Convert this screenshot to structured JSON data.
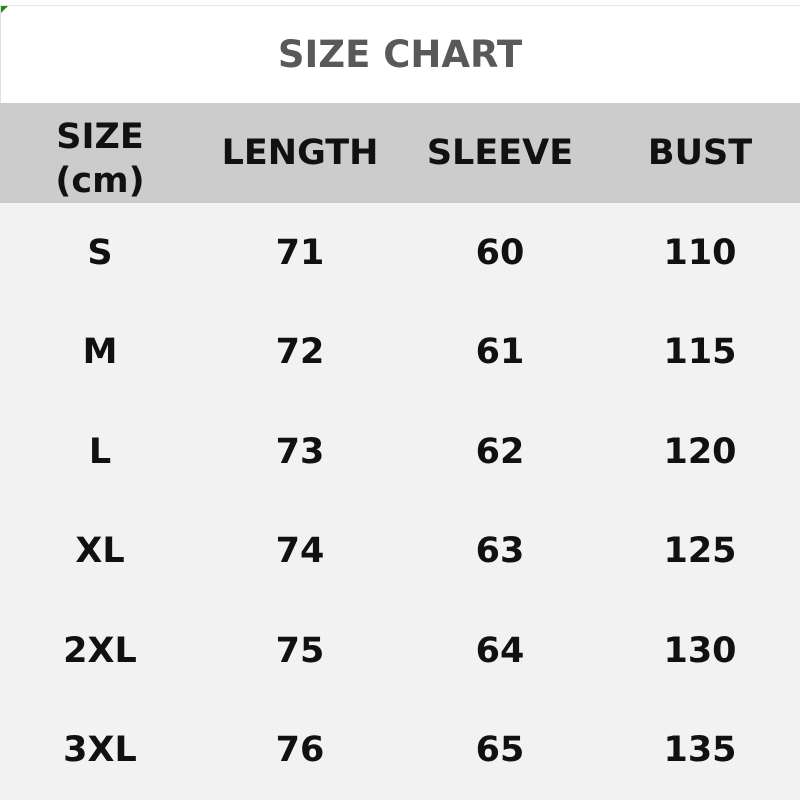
{
  "title": "SIZE CHART",
  "headers": [
    "SIZE",
    "(cm)",
    "LENGTH",
    "SLEEVE",
    "BUST"
  ],
  "rows": [
    [
      "S",
      "71",
      "60",
      "110"
    ],
    [
      "M",
      "72",
      "61",
      "115"
    ],
    [
      "L",
      "73",
      "62",
      "120"
    ],
    [
      "XL",
      "74",
      "63",
      "125"
    ],
    [
      "2XL",
      "75",
      "64",
      "130"
    ],
    [
      "3XL",
      "76",
      "65",
      "135"
    ]
  ],
  "colors": {
    "title": "#595959",
    "header_bg": "#cccccc",
    "body_bg": "#f2f2f2",
    "text": "#111111"
  }
}
